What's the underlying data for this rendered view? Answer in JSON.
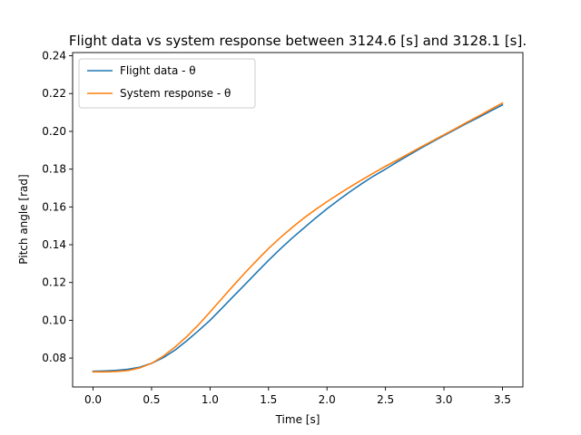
{
  "chart_data": {
    "type": "line",
    "title": "Flight data vs system response between 3124.6 [s] and 3128.1 [s].",
    "xlabel": "Time [s]",
    "ylabel": "Pitch angle [rad]",
    "xlim": [
      -0.175,
      3.675
    ],
    "ylim": [
      0.0647,
      0.2417
    ],
    "xticks": [
      0.0,
      0.5,
      1.0,
      1.5,
      2.0,
      2.5,
      3.0,
      3.5
    ],
    "xtick_labels": [
      "0.0",
      "0.5",
      "1.0",
      "1.5",
      "2.0",
      "2.5",
      "3.0",
      "3.5"
    ],
    "yticks": [
      0.08,
      0.1,
      0.12,
      0.14,
      0.16,
      0.18,
      0.2,
      0.22,
      0.24
    ],
    "ytick_labels": [
      "0.08",
      "0.10",
      "0.12",
      "0.14",
      "0.16",
      "0.18",
      "0.20",
      "0.22",
      "0.24"
    ],
    "grid": false,
    "legend_position": "top-left",
    "x": [
      0.0,
      0.1,
      0.2,
      0.3,
      0.4,
      0.5,
      0.6,
      0.7,
      0.8,
      0.9,
      1.0,
      1.1,
      1.2,
      1.3,
      1.4,
      1.5,
      1.6,
      1.7,
      1.8,
      1.9,
      2.0,
      2.1,
      2.2,
      2.3,
      2.4,
      2.5,
      2.6,
      2.7,
      2.8,
      2.9,
      3.0,
      3.1,
      3.2,
      3.3,
      3.4,
      3.5
    ],
    "series": [
      {
        "name": "Flight data - θ",
        "color": "#1f77b4",
        "values": [
          0.073,
          0.0732,
          0.0735,
          0.0741,
          0.0752,
          0.0772,
          0.0802,
          0.0842,
          0.0891,
          0.0944,
          0.1,
          0.1063,
          0.1127,
          0.119,
          0.1254,
          0.1317,
          0.1377,
          0.1434,
          0.1487,
          0.154,
          0.159,
          0.1637,
          0.1682,
          0.1724,
          0.1764,
          0.18,
          0.1838,
          0.1874,
          0.191,
          0.1944,
          0.1978,
          0.2011,
          0.2044,
          0.2075,
          0.2108,
          0.214
        ]
      },
      {
        "name": "System response - θ",
        "color": "#ff7f0e",
        "values": [
          0.0727,
          0.0727,
          0.0729,
          0.0734,
          0.0748,
          0.0772,
          0.081,
          0.0858,
          0.0913,
          0.0975,
          0.1044,
          0.1114,
          0.1184,
          0.1252,
          0.1317,
          0.138,
          0.1437,
          0.149,
          0.154,
          0.1585,
          0.1628,
          0.1668,
          0.1707,
          0.1744,
          0.178,
          0.1815,
          0.1848,
          0.1882,
          0.1916,
          0.1949,
          0.1982,
          0.2015,
          0.2049,
          0.2082,
          0.2116,
          0.215
        ]
      }
    ]
  }
}
